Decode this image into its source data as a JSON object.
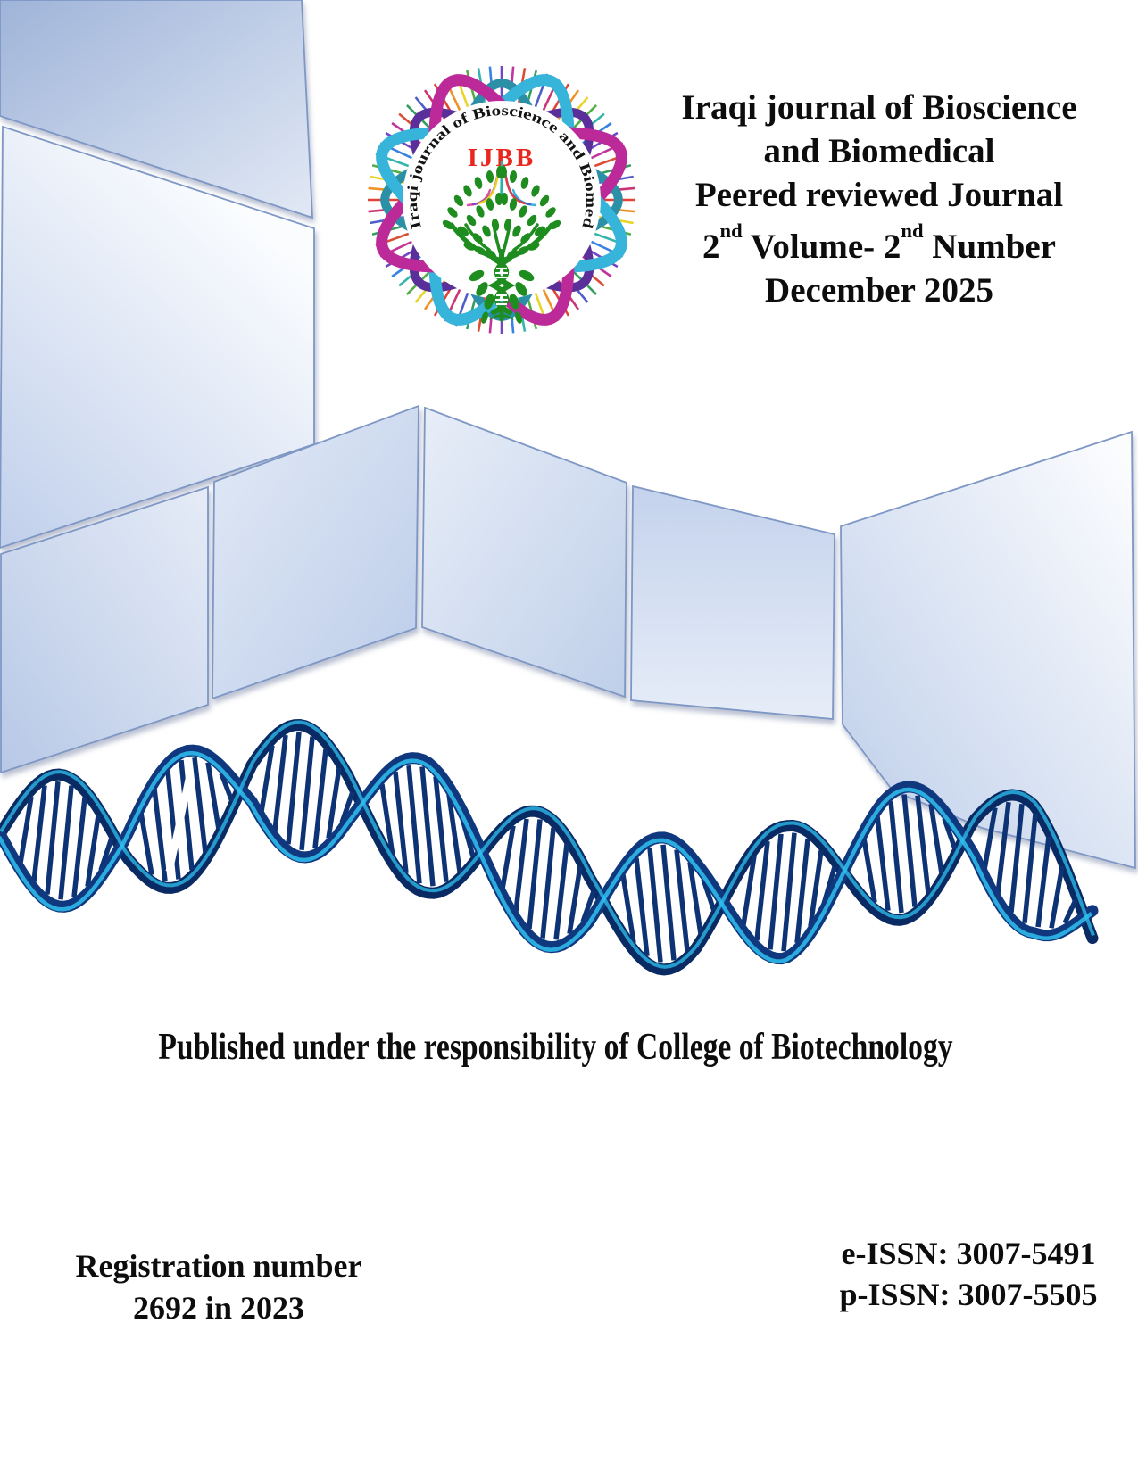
{
  "journal": {
    "title_line1": "Iraqi journal of Bioscience",
    "title_line2": "and Biomedical",
    "subtitle": "Peered reviewed Journal",
    "volume_prefix": "2",
    "volume_sup": "nd",
    "volume_mid": " Volume- 2",
    "number_sup": "nd",
    "number_suffix": " Number",
    "issue_date": "December 2025"
  },
  "logo": {
    "curved_text": "Iraqi journal of Bioscience and Biomedical",
    "acronym": "IJBB"
  },
  "publisher_note": "Published under the responsibility of College of Biotechnology",
  "registration": {
    "line1": "Registration number",
    "line2": "2692 in 2023"
  },
  "issn": {
    "e": "e-ISSN: 3007-5491",
    "p": "p-ISSN: 3007-5505"
  },
  "colors": {
    "accent_red": "#e8281e",
    "panel_blue": "#c9d6ee",
    "panel_pale": "#f8fafd",
    "panel_border": "#7e97c5",
    "helix_navy": "#0a2a63",
    "helix_cyan": "#2fc1ee",
    "tree_green": "#1e8c1e"
  }
}
